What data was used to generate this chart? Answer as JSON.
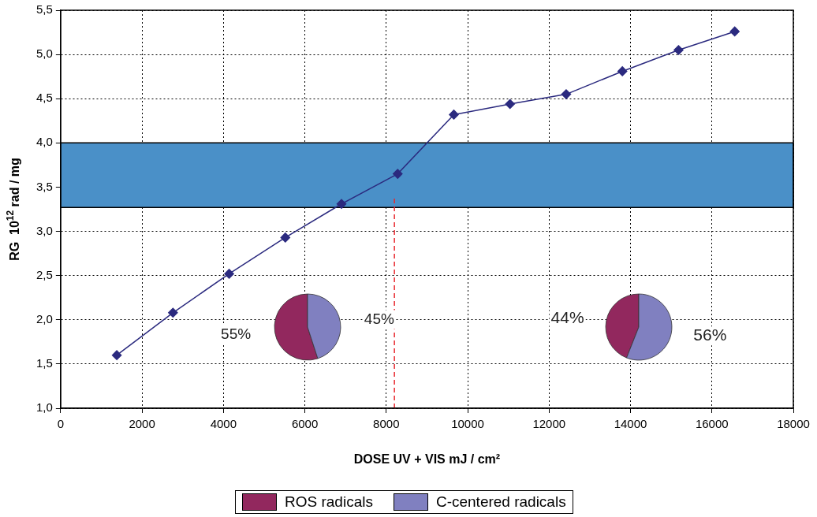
{
  "chart_data": [
    {
      "type": "line",
      "xlabel": "DOSE UV + VIS mJ / cm²",
      "ylabel": "RG  10$^{12}$ rad / mg",
      "x": [
        1380,
        2760,
        4140,
        5520,
        6900,
        8280,
        9660,
        11040,
        12420,
        13800,
        15180,
        16560
      ],
      "series": [
        {
          "color": "#2b2a7f",
          "values": [
            1.6,
            2.08,
            2.52,
            2.93,
            3.31,
            3.65,
            4.32,
            4.44,
            4.55,
            4.81,
            5.05,
            5.26
          ]
        }
      ],
      "xlim": [
        0,
        18000
      ],
      "xticks": [
        0,
        2000,
        4000,
        6000,
        8000,
        10000,
        12000,
        14000,
        16000,
        18000
      ],
      "ylim": [
        1.0,
        5.5
      ],
      "yticks": [
        {
          "value": 1.0,
          "label": "1,0"
        },
        {
          "value": 1.5,
          "label": "1,5"
        },
        {
          "value": 2.0,
          "label": "2,0"
        },
        {
          "value": 2.5,
          "label": "2,5"
        },
        {
          "value": 3.0,
          "label": "3,0"
        },
        {
          "value": 3.5,
          "label": "3,5"
        },
        {
          "value": 4.0,
          "label": "4,0"
        },
        {
          "value": 4.5,
          "label": "4,5"
        },
        {
          "value": 5.0,
          "label": "5,0"
        },
        {
          "value": 5.5,
          "label": "5,5"
        }
      ],
      "bands": [
        {
          "axis": "y",
          "from": 3.27,
          "to": 4.0,
          "color": "#4a90c8"
        }
      ],
      "ref_lines": [
        {
          "axis": "x",
          "value": 8200,
          "color": "#e8262c",
          "line_style": "dashed"
        }
      ],
      "grid": true,
      "marker": "diamond",
      "line_style": "solid",
      "legend": false
    },
    {
      "type": "pie",
      "categories": [
        "ROS radicals",
        "C-centered radicals"
      ],
      "values": [
        55,
        45
      ],
      "colors": [
        "#92285e",
        "#8080c0"
      ],
      "value_labels": [
        "55%",
        "45%"
      ],
      "legend": "bottom"
    },
    {
      "type": "pie",
      "categories": [
        null,
        null
      ],
      "values": [
        44,
        56
      ],
      "colors": [
        "#92285e",
        "#8080c0"
      ],
      "value_labels": [
        "44%",
        "56%"
      ],
      "legend": false
    }
  ]
}
